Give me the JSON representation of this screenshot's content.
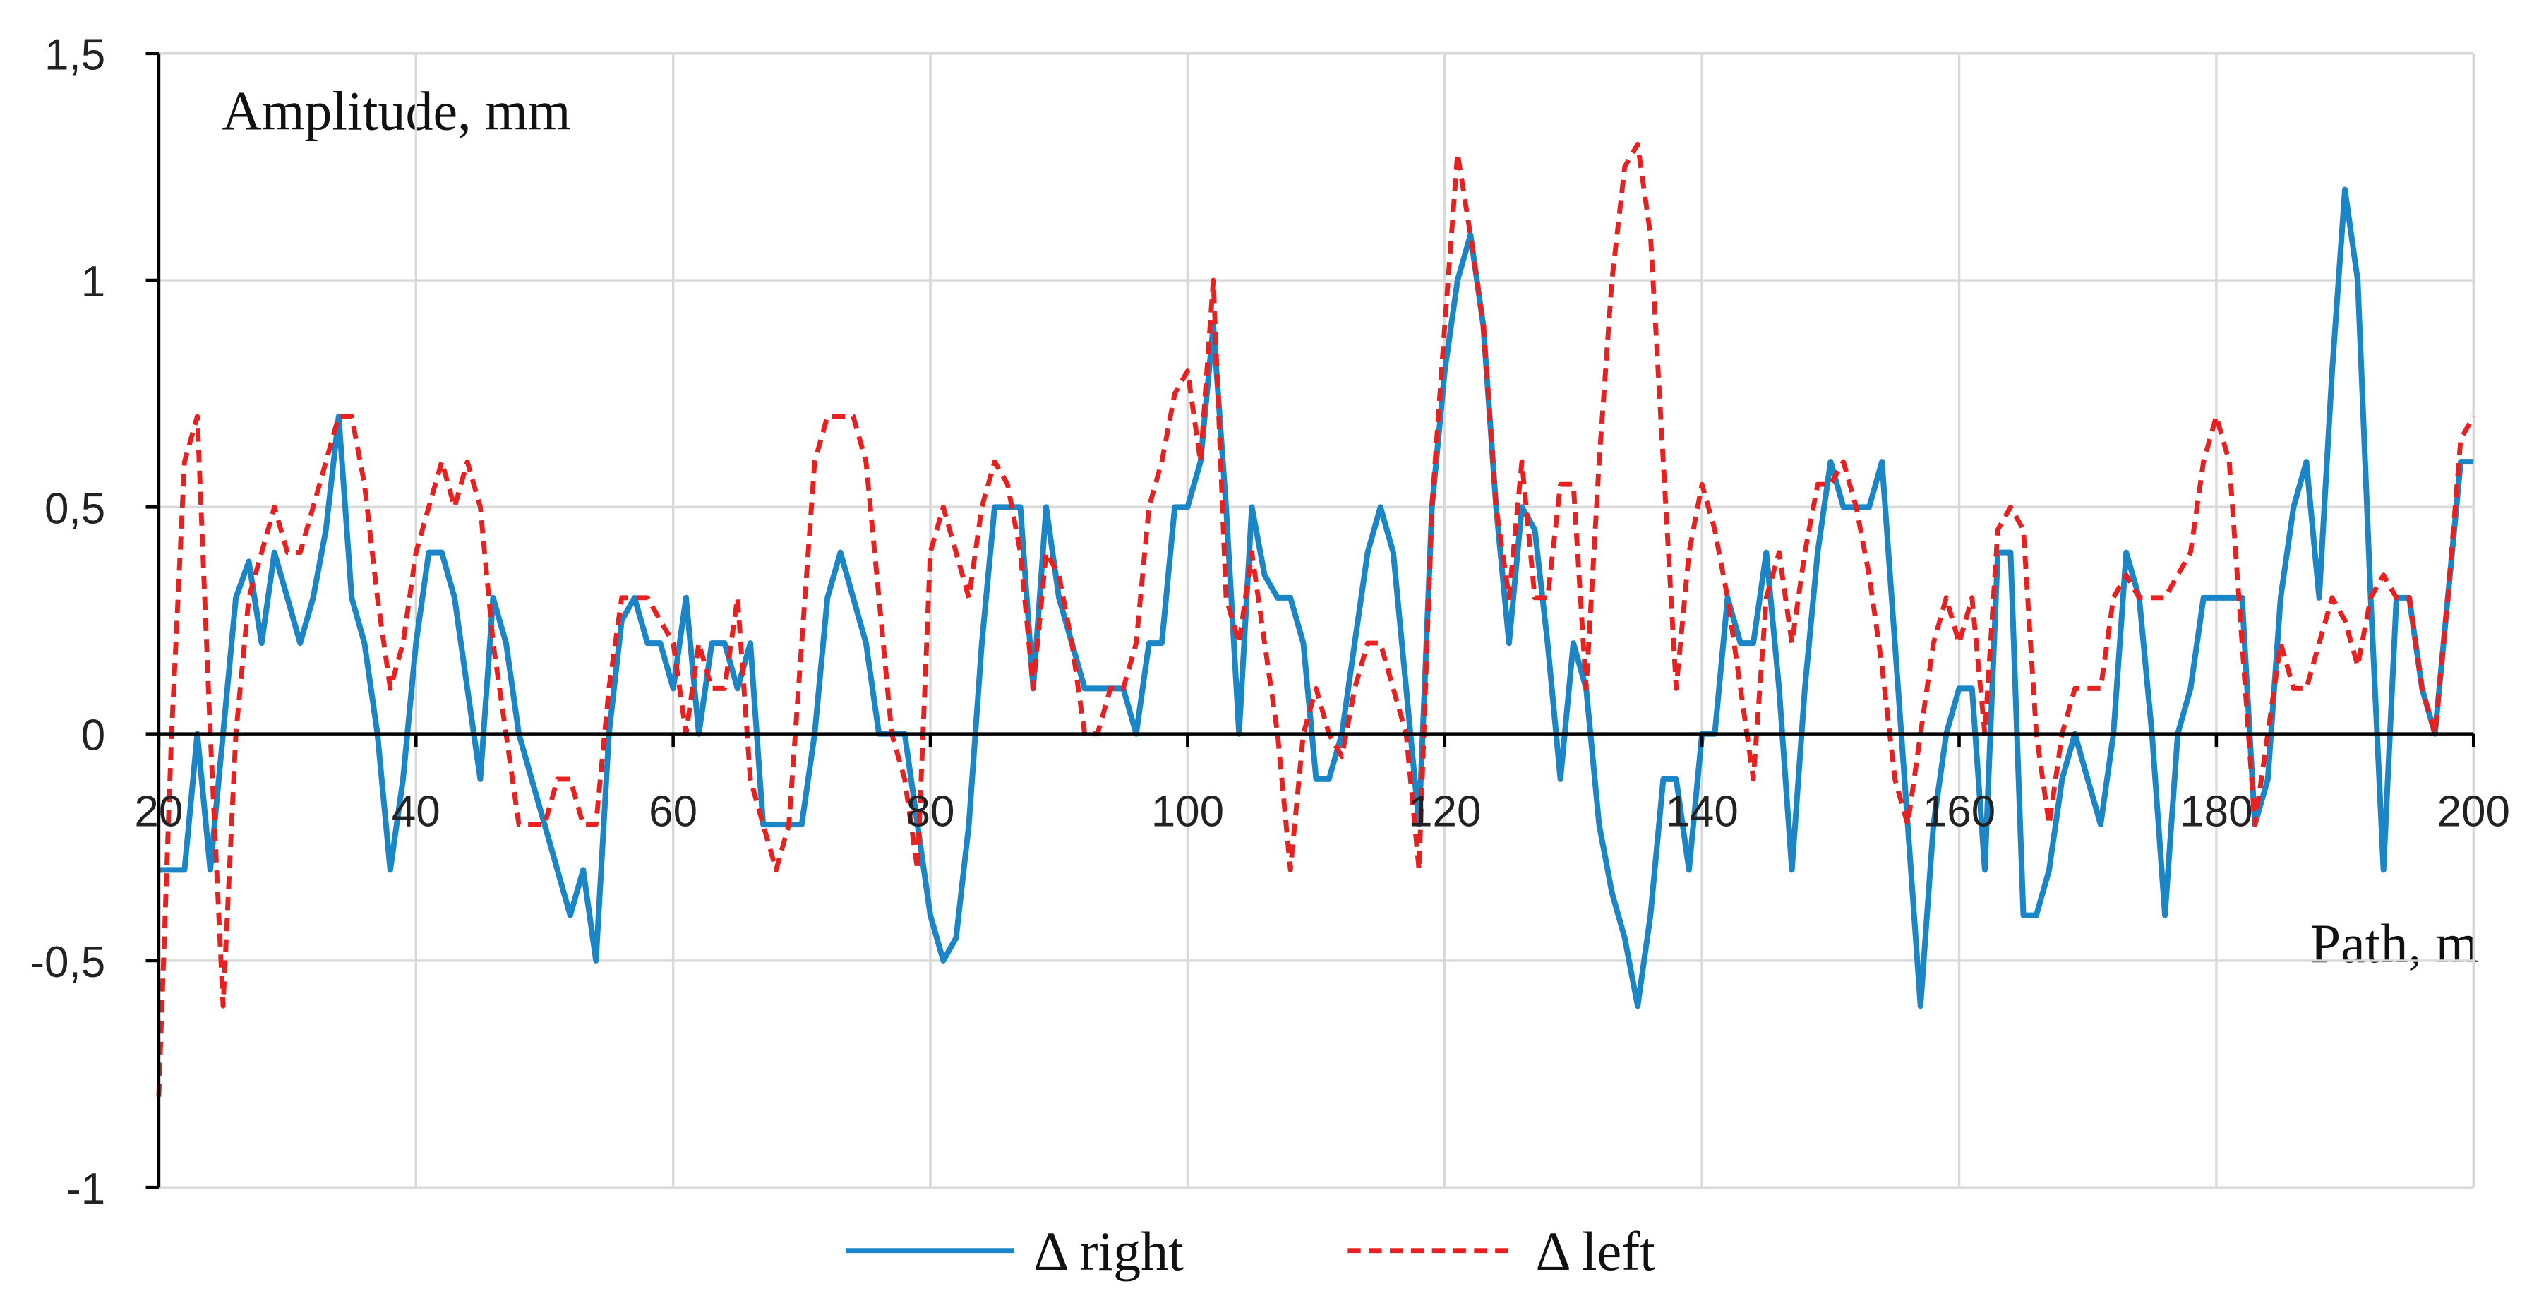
{
  "chart_data": {
    "type": "line",
    "ylabel": "Amplitude, mm",
    "xlabel": "Path, m",
    "xlim": [
      20,
      200
    ],
    "xticks": [
      20,
      40,
      60,
      80,
      100,
      120,
      140,
      160,
      180,
      200
    ],
    "ylim": [
      -1,
      1.5
    ],
    "yticks": [
      -1,
      {
        "value": -0.5,
        "label": "-0,5"
      },
      0,
      {
        "value": 0.5,
        "label": "0,5"
      },
      1,
      {
        "value": 1.5,
        "label": "1,5"
      }
    ],
    "grid": true,
    "legend": "bottom",
    "x": [
      20,
      21,
      22,
      23,
      24,
      25,
      26,
      27,
      28,
      29,
      30,
      31,
      32,
      33,
      34,
      35,
      36,
      37,
      38,
      39,
      40,
      41,
      42,
      43,
      44,
      45,
      46,
      47,
      48,
      49,
      50,
      51,
      52,
      53,
      54,
      55,
      56,
      57,
      58,
      59,
      60,
      61,
      62,
      63,
      64,
      65,
      66,
      67,
      68,
      69,
      70,
      71,
      72,
      73,
      74,
      75,
      76,
      77,
      78,
      79,
      80,
      81,
      82,
      83,
      84,
      85,
      86,
      87,
      88,
      89,
      90,
      91,
      92,
      93,
      94,
      95,
      96,
      97,
      98,
      99,
      100,
      101,
      102,
      103,
      104,
      105,
      106,
      107,
      108,
      109,
      110,
      111,
      112,
      113,
      114,
      115,
      116,
      117,
      118,
      119,
      120,
      121,
      122,
      123,
      124,
      125,
      126,
      127,
      128,
      129,
      130,
      131,
      132,
      133,
      134,
      135,
      136,
      137,
      138,
      139,
      140,
      141,
      142,
      143,
      144,
      145,
      146,
      147,
      148,
      149,
      150,
      151,
      152,
      153,
      154,
      155,
      156,
      157,
      158,
      159,
      160,
      161,
      162,
      163,
      164,
      165,
      166,
      167,
      168,
      169,
      170,
      171,
      172,
      173,
      174,
      175,
      176,
      177,
      178,
      179,
      180,
      181,
      182,
      183,
      184,
      185,
      186,
      187,
      188,
      189,
      190,
      191,
      192,
      193,
      194,
      195,
      196,
      197,
      198,
      199,
      200
    ],
    "series": [
      {
        "name": "Δ right",
        "color": "#1a86c8",
        "dashed": false,
        "values": [
          -0.3,
          -0.3,
          -0.3,
          0.0,
          -0.3,
          0.0,
          0.3,
          0.38,
          0.2,
          0.4,
          0.3,
          0.2,
          0.3,
          0.45,
          0.7,
          0.3,
          0.2,
          0.0,
          -0.3,
          -0.1,
          0.2,
          0.4,
          0.4,
          0.3,
          0.1,
          -0.1,
          0.3,
          0.2,
          0.0,
          -0.1,
          -0.2,
          -0.3,
          -0.4,
          -0.3,
          -0.5,
          0.0,
          0.25,
          0.3,
          0.2,
          0.2,
          0.1,
          0.3,
          0.0,
          0.2,
          0.2,
          0.1,
          0.2,
          -0.2,
          -0.2,
          -0.2,
          -0.2,
          0.0,
          0.3,
          0.4,
          0.3,
          0.2,
          0.0,
          0.0,
          0.0,
          -0.2,
          -0.4,
          -0.5,
          -0.45,
          -0.2,
          0.2,
          0.5,
          0.5,
          0.5,
          0.1,
          0.5,
          0.3,
          0.2,
          0.1,
          0.1,
          0.1,
          0.1,
          0.0,
          0.2,
          0.2,
          0.5,
          0.5,
          0.6,
          0.9,
          0.5,
          0.0,
          0.5,
          0.35,
          0.3,
          0.3,
          0.2,
          -0.1,
          -0.1,
          0.0,
          0.2,
          0.4,
          0.5,
          0.4,
          0.1,
          -0.2,
          0.5,
          0.8,
          1.0,
          1.1,
          0.9,
          0.5,
          0.2,
          0.5,
          0.45,
          0.2,
          -0.1,
          0.2,
          0.1,
          -0.2,
          -0.35,
          -0.45,
          -0.6,
          -0.4,
          -0.1,
          -0.1,
          -0.3,
          0.0,
          0.0,
          0.3,
          0.2,
          0.2,
          0.4,
          0.1,
          -0.3,
          0.1,
          0.4,
          0.6,
          0.5,
          0.5,
          0.5,
          0.6,
          0.2,
          -0.2,
          -0.6,
          -0.2,
          0.0,
          0.1,
          0.1,
          -0.3,
          0.4,
          0.4,
          -0.4,
          -0.4,
          -0.3,
          -0.1,
          0.0,
          -0.1,
          -0.2,
          0.0,
          0.4,
          0.3,
          0.0,
          -0.4,
          0.0,
          0.1,
          0.3,
          0.3,
          0.3,
          0.3,
          -0.2,
          -0.1,
          0.3,
          0.5,
          0.6,
          0.3,
          0.8,
          1.2,
          1.0,
          0.3,
          -0.3,
          0.3,
          0.3,
          0.1,
          0.0,
          0.3,
          0.6,
          0.6
        ]
      },
      {
        "name": "Δ left",
        "color": "#e8201f",
        "dashed": true,
        "values": [
          -0.8,
          0.0,
          0.6,
          0.7,
          0.0,
          -0.6,
          0.0,
          0.3,
          0.4,
          0.5,
          0.4,
          0.4,
          0.5,
          0.6,
          0.7,
          0.7,
          0.55,
          0.3,
          0.1,
          0.2,
          0.4,
          0.5,
          0.6,
          0.5,
          0.6,
          0.5,
          0.2,
          0.0,
          -0.2,
          -0.2,
          -0.2,
          -0.1,
          -0.1,
          -0.2,
          -0.2,
          0.1,
          0.3,
          0.3,
          0.3,
          0.25,
          0.2,
          0.0,
          0.2,
          0.1,
          0.1,
          0.3,
          -0.1,
          -0.2,
          -0.3,
          -0.2,
          0.2,
          0.6,
          0.7,
          0.7,
          0.7,
          0.6,
          0.3,
          0.0,
          -0.1,
          -0.3,
          0.4,
          0.5,
          0.4,
          0.3,
          0.5,
          0.6,
          0.55,
          0.4,
          0.1,
          0.4,
          0.35,
          0.2,
          0.0,
          0.0,
          0.1,
          0.1,
          0.2,
          0.5,
          0.6,
          0.75,
          0.8,
          0.6,
          1.0,
          0.3,
          0.2,
          0.4,
          0.2,
          0.0,
          -0.3,
          0.0,
          0.1,
          0.0,
          -0.05,
          0.1,
          0.2,
          0.2,
          0.1,
          0.0,
          -0.3,
          0.5,
          0.9,
          1.28,
          1.1,
          0.9,
          0.5,
          0.3,
          0.6,
          0.3,
          0.3,
          0.55,
          0.55,
          0.1,
          0.6,
          1.0,
          1.25,
          1.3,
          1.1,
          0.6,
          0.1,
          0.4,
          0.55,
          0.45,
          0.3,
          0.1,
          -0.1,
          0.3,
          0.4,
          0.2,
          0.4,
          0.55,
          0.55,
          0.6,
          0.5,
          0.35,
          0.15,
          -0.1,
          -0.2,
          0.0,
          0.2,
          0.3,
          0.2,
          0.3,
          0.0,
          0.45,
          0.5,
          0.45,
          0.0,
          -0.2,
          0.0,
          0.1,
          0.1,
          0.1,
          0.3,
          0.35,
          0.3,
          0.3,
          0.3,
          0.35,
          0.4,
          0.6,
          0.7,
          0.6,
          0.2,
          -0.2,
          0.0,
          0.2,
          0.1,
          0.1,
          0.2,
          0.3,
          0.25,
          0.15,
          0.3,
          0.35,
          0.3,
          0.3,
          0.1,
          0.0,
          0.3,
          0.65,
          0.7
        ]
      }
    ]
  }
}
